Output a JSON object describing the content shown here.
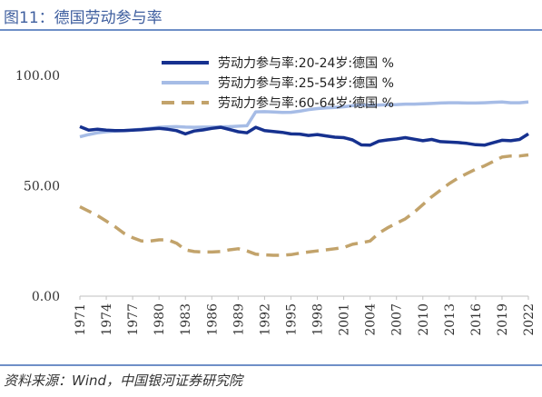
{
  "header": {
    "title": "图11：德国劳动参与率"
  },
  "footer": {
    "source": "资料来源：Wind，中国银河证券研究院"
  },
  "chart_data": {
    "type": "line",
    "title": "",
    "xlabel": "",
    "ylabel": "",
    "ylim": [
      0,
      100
    ],
    "yticks": [
      "0.00",
      "50.00",
      "100.00"
    ],
    "xticks": [
      "1971",
      "1974",
      "1977",
      "1980",
      "1983",
      "1986",
      "1989",
      "1992",
      "1995",
      "1998",
      "2001",
      "2004",
      "2007",
      "2010",
      "2013",
      "2016",
      "2019",
      "2022"
    ],
    "x": [
      1971,
      1972,
      1973,
      1974,
      1975,
      1976,
      1977,
      1978,
      1979,
      1980,
      1981,
      1982,
      1983,
      1984,
      1985,
      1986,
      1987,
      1988,
      1989,
      1990,
      1991,
      1992,
      1993,
      1994,
      1995,
      1996,
      1997,
      1998,
      1999,
      2000,
      2001,
      2002,
      2003,
      2004,
      2005,
      2006,
      2007,
      2008,
      2009,
      2010,
      2011,
      2012,
      2013,
      2014,
      2015,
      2016,
      2017,
      2018,
      2019,
      2020,
      2021,
      2022
    ],
    "legend_position": "top",
    "grid": false,
    "series": [
      {
        "name": "劳动力参与率:20-24岁:德国 %",
        "color": "#16318f",
        "style": "solid",
        "values": [
          76.8,
          75.2,
          75.6,
          75.2,
          75.0,
          75.0,
          75.2,
          75.4,
          75.7,
          76.0,
          75.6,
          75.0,
          73.5,
          74.8,
          75.3,
          76.0,
          76.5,
          75.5,
          74.5,
          74.0,
          76.5,
          75.0,
          74.6,
          74.2,
          73.5,
          73.4,
          72.8,
          73.2,
          72.6,
          72.0,
          71.8,
          70.8,
          68.5,
          68.4,
          70.2,
          70.8,
          71.2,
          71.8,
          71.1,
          70.4,
          71.0,
          70.0,
          69.8,
          69.6,
          69.2,
          68.6,
          68.4,
          69.5,
          70.6,
          70.4,
          71.0,
          73.5
        ]
      },
      {
        "name": "劳动力参与率:25-54岁:德国 %",
        "color": "#a6bce6",
        "style": "solid",
        "values": [
          72.2,
          73.2,
          74.0,
          74.5,
          74.8,
          75.0,
          75.3,
          75.6,
          76.0,
          76.5,
          76.7,
          76.8,
          76.6,
          76.5,
          76.6,
          76.6,
          76.7,
          76.8,
          77.0,
          77.2,
          83.5,
          83.6,
          83.4,
          83.2,
          83.3,
          83.8,
          84.5,
          85.0,
          85.3,
          85.5,
          85.8,
          86.3,
          86.6,
          86.6,
          86.6,
          86.7,
          86.8,
          87.0,
          87.0,
          87.1,
          87.3,
          87.5,
          87.6,
          87.6,
          87.5,
          87.5,
          87.6,
          87.8,
          88.0,
          87.6,
          87.6,
          88.0
        ]
      },
      {
        "name": "劳动力参与率:60-64岁:德国 %",
        "color": "#c2a36b",
        "style": "dashed",
        "values": [
          40.5,
          38.5,
          36.5,
          34.0,
          31.5,
          28.5,
          26.5,
          25.0,
          25.0,
          25.5,
          25.5,
          24.0,
          21.0,
          20.2,
          20.0,
          20.0,
          20.2,
          21.0,
          21.5,
          20.5,
          19.0,
          18.7,
          18.5,
          18.5,
          18.8,
          19.5,
          20.0,
          20.5,
          21.0,
          21.5,
          22.0,
          23.5,
          24.2,
          25.0,
          28.5,
          31.0,
          33.0,
          35.0,
          38.0,
          41.5,
          45.0,
          48.0,
          51.0,
          53.5,
          55.5,
          57.5,
          59.0,
          61.0,
          63.0,
          63.5,
          63.5,
          64.0
        ]
      }
    ]
  }
}
